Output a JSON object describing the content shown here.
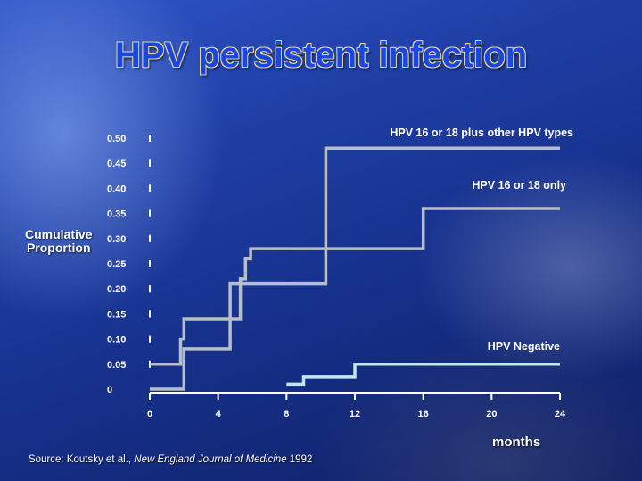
{
  "slide": {
    "title": "HPV persistent infection",
    "ylabel_line1": "Cumulative",
    "ylabel_line2": "Proportion",
    "xlabel": "months",
    "source_prefix": "Source: Koutsky et al., ",
    "source_journal": "New England Journal of Medicine",
    "source_suffix": " 1992"
  },
  "chart_data": {
    "type": "line",
    "step": true,
    "xlabel": "months",
    "ylabel": "Cumulative Proportion",
    "x_ticks": [
      "0",
      "4",
      "8",
      "12",
      "16",
      "20",
      "24"
    ],
    "y_ticks": [
      "0",
      "0.05",
      "0.10",
      "0.15",
      "0.20",
      "0.25",
      "0.30",
      "0.35",
      "0.40",
      "0.45",
      "0.50"
    ],
    "xlim": [
      0,
      24
    ],
    "ylim": [
      0,
      0.5
    ],
    "grid": false,
    "series": [
      {
        "name": "HPV 16 or 18 plus other HPV types",
        "color": "#b7bec9",
        "points": [
          [
            0,
            0.0
          ],
          [
            2.0,
            0.0
          ],
          [
            2.0,
            0.08
          ],
          [
            4.7,
            0.08
          ],
          [
            4.7,
            0.21
          ],
          [
            10.3,
            0.21
          ],
          [
            10.3,
            0.48
          ],
          [
            24.0,
            0.48
          ]
        ]
      },
      {
        "name": "HPV 16 or 18 only",
        "color": "#b7bec9",
        "points": [
          [
            0,
            0.05
          ],
          [
            1.8,
            0.05
          ],
          [
            1.8,
            0.1
          ],
          [
            2.0,
            0.1
          ],
          [
            2.0,
            0.14
          ],
          [
            5.3,
            0.14
          ],
          [
            5.3,
            0.22
          ],
          [
            5.6,
            0.22
          ],
          [
            5.6,
            0.26
          ],
          [
            5.9,
            0.26
          ],
          [
            5.9,
            0.28
          ],
          [
            16.0,
            0.28
          ],
          [
            16.0,
            0.36
          ],
          [
            24.0,
            0.36
          ]
        ]
      },
      {
        "name": "HPV Negative",
        "color": "#bfe9e6",
        "points": [
          [
            8.0,
            0.01
          ],
          [
            9.0,
            0.01
          ],
          [
            9.0,
            0.025
          ],
          [
            12.0,
            0.025
          ],
          [
            12.0,
            0.05
          ],
          [
            24.0,
            0.05
          ]
        ]
      }
    ]
  }
}
